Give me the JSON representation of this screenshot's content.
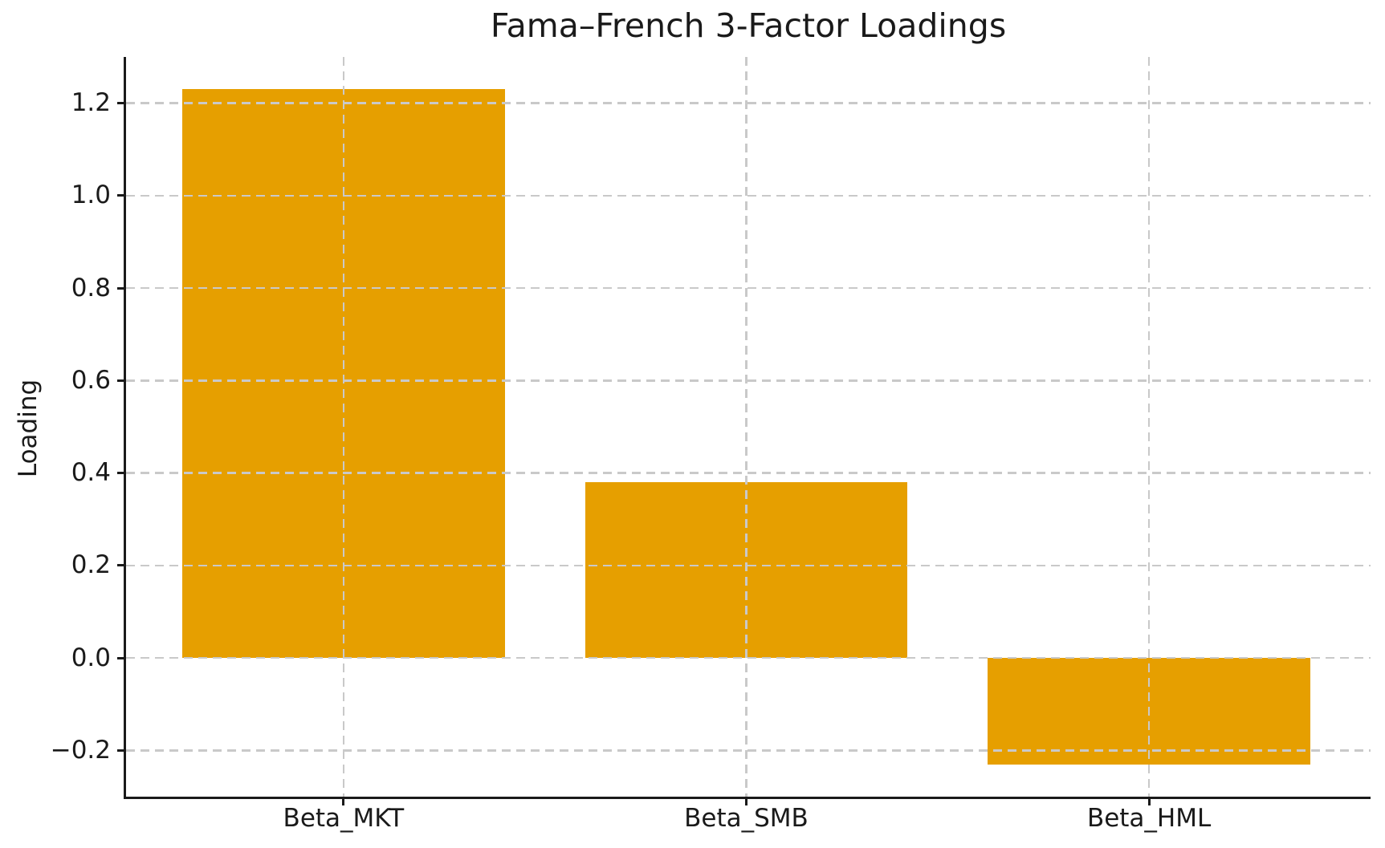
{
  "chart_data": {
    "type": "bar",
    "title": "Fama–French 3-Factor Loadings",
    "xlabel": "",
    "ylabel": "Loading",
    "categories": [
      "Beta_MKT",
      "Beta_SMB",
      "Beta_HML"
    ],
    "values": [
      1.23,
      0.38,
      -0.23
    ],
    "ylim": [
      -0.3,
      1.3
    ],
    "xlim": [
      -0.54,
      2.55
    ],
    "bar_width": 0.8,
    "yticks": [
      {
        "value": 1.2,
        "label": "1.2"
      },
      {
        "value": 1.0,
        "label": "1.0"
      },
      {
        "value": 0.8,
        "label": "0.8"
      },
      {
        "value": 0.6,
        "label": "0.6"
      },
      {
        "value": 0.4,
        "label": "0.4"
      },
      {
        "value": 0.2,
        "label": "0.2"
      },
      {
        "value": 0.0,
        "label": "0.0"
      },
      {
        "value": -0.2,
        "label": "−0.2"
      }
    ],
    "grid": true,
    "grid_style": "dashed",
    "grid_on_top": true,
    "legend": false,
    "spines": {
      "top": false,
      "right": false,
      "left": true,
      "bottom": true
    },
    "colors": {
      "bar": "#E69F00",
      "grid": "#C9C9C9",
      "text": "#1A1A1A",
      "spine": "#1A1A1A",
      "background": "#FFFFFF"
    }
  }
}
